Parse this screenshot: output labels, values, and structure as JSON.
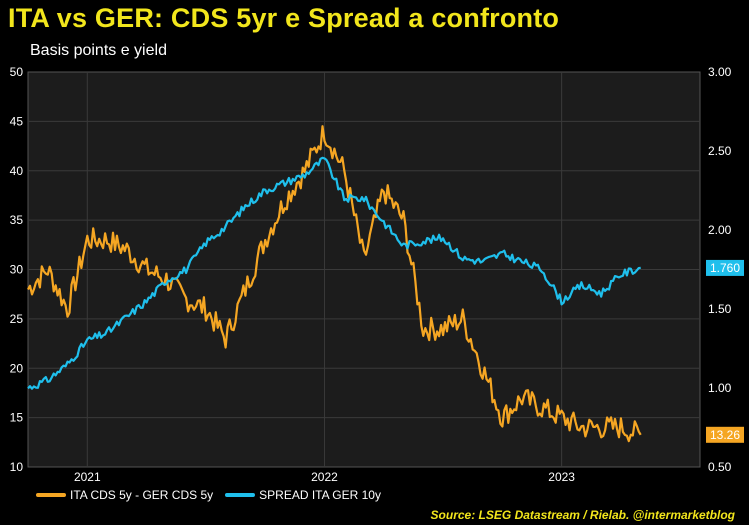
{
  "title": "ITA vs GER: CDS 5yr e Spread a confronto",
  "subtitle": "Basis points e yield",
  "source": "Source: LSEG Datastream / Rielab. @intermarketblog",
  "colors": {
    "background": "#000000",
    "plot_bg": "#1c1c1c",
    "cds": "#f5a623",
    "spread": "#1fbfec",
    "title": "#f2e61c",
    "grid": "#3a3a3a"
  },
  "chart_data": {
    "type": "line",
    "x": [
      "2020-10",
      "2020-11",
      "2020-12",
      "2021-01",
      "2021-02",
      "2021-03",
      "2021-04",
      "2021-05",
      "2021-06",
      "2021-07",
      "2021-08",
      "2021-09",
      "2021-10",
      "2021-11",
      "2021-12",
      "2022-01",
      "2022-02",
      "2022-03",
      "2022-04",
      "2022-05",
      "2022-06",
      "2022-07",
      "2022-08",
      "2022-09",
      "2022-10",
      "2022-11",
      "2022-12",
      "2023-01",
      "2023-02",
      "2023-03",
      "2023-04",
      "2023-05"
    ],
    "x_tick_labels": [
      "2021",
      "2022",
      "2023"
    ],
    "y_left": {
      "ticks": [
        10,
        15,
        20,
        25,
        30,
        35,
        40,
        45,
        50
      ],
      "ylim": [
        10,
        50
      ]
    },
    "y_right": {
      "ticks": [
        "0.50",
        "1.00",
        "1.50",
        "2.00",
        "2.50",
        "3.00"
      ],
      "ylim": [
        0.5,
        3.0
      ]
    },
    "series": [
      {
        "name": "ITA CDS 5y - GER CDS 5y",
        "axis": "left",
        "last_label": "13.26",
        "values": [
          28,
          30,
          26,
          33,
          33,
          32,
          30,
          29,
          27,
          26,
          23,
          28,
          33,
          37,
          40,
          44,
          40,
          31,
          38,
          35,
          24,
          24,
          25,
          20,
          15,
          17,
          16,
          15,
          14,
          14,
          14,
          13.26
        ]
      },
      {
        "name": "SPREAD ITA GER 10y",
        "axis": "right",
        "last_label": "1.760",
        "values": [
          1.0,
          1.05,
          1.15,
          1.3,
          1.35,
          1.45,
          1.55,
          1.68,
          1.75,
          1.92,
          2.02,
          2.15,
          2.25,
          2.3,
          2.35,
          2.45,
          2.2,
          2.2,
          2.05,
          1.9,
          1.93,
          1.95,
          1.82,
          1.8,
          1.85,
          1.8,
          1.75,
          1.55,
          1.65,
          1.6,
          1.72,
          1.76
        ]
      }
    ]
  }
}
